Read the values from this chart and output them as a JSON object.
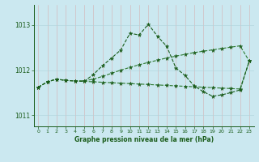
{
  "bg_color": "#cbe8f0",
  "grid_color_v": "#b0d4dc",
  "grid_color_h": "#b0d4dc",
  "line_dark": "#1a5c1a",
  "line_med": "#2d7a2d",
  "ylim": [
    1010.75,
    1013.45
  ],
  "yticks": [
    1011,
    1012,
    1013
  ],
  "xlim": [
    -0.5,
    23.5
  ],
  "xlabel": "Graphe pression niveau de la mer (hPa)",
  "s1_x": [
    0,
    1,
    2,
    3,
    4,
    5,
    6,
    7,
    8,
    9,
    10,
    11,
    12,
    13,
    14,
    15,
    16,
    17,
    18,
    19,
    20,
    21,
    22,
    23
  ],
  "s1_y": [
    1011.62,
    1011.74,
    1011.8,
    1011.77,
    1011.76,
    1011.75,
    1011.74,
    1011.73,
    1011.72,
    1011.71,
    1011.7,
    1011.69,
    1011.68,
    1011.67,
    1011.66,
    1011.65,
    1011.64,
    1011.63,
    1011.62,
    1011.61,
    1011.6,
    1011.59,
    1011.58,
    1012.2
  ],
  "s2_x": [
    0,
    1,
    2,
    3,
    4,
    5,
    6,
    7,
    8,
    9,
    10,
    11,
    12,
    13,
    14,
    15,
    16,
    17,
    18,
    19,
    20,
    21,
    22,
    23
  ],
  "s2_y": [
    1011.62,
    1011.74,
    1011.8,
    1011.77,
    1011.76,
    1011.76,
    1011.8,
    1011.86,
    1011.93,
    1012.0,
    1012.06,
    1012.12,
    1012.17,
    1012.22,
    1012.27,
    1012.31,
    1012.35,
    1012.39,
    1012.42,
    1012.45,
    1012.48,
    1012.51,
    1012.54,
    1012.2
  ],
  "s3_x": [
    0,
    1,
    2,
    3,
    4,
    5,
    6,
    7,
    8,
    9,
    10,
    11,
    12,
    13,
    14,
    15,
    16,
    17,
    18,
    19,
    20,
    21,
    22,
    23
  ],
  "s3_y": [
    1011.62,
    1011.74,
    1011.8,
    1011.77,
    1011.76,
    1011.75,
    1011.9,
    1012.1,
    1012.27,
    1012.45,
    1012.82,
    1012.78,
    1013.02,
    1012.75,
    1012.53,
    1012.05,
    1011.88,
    1011.65,
    1011.52,
    1011.42,
    1011.45,
    1011.5,
    1011.56,
    1012.2
  ]
}
